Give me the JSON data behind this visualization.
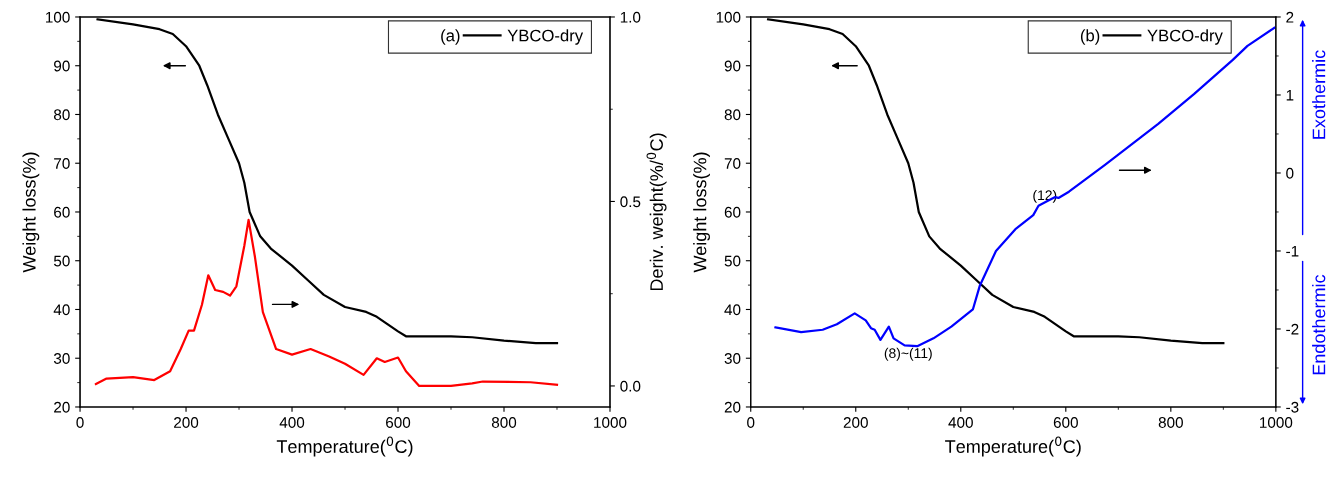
{
  "chart_data": [
    {
      "type": "line",
      "legend_title": "(a)",
      "xlabel": "Temperature($^{0}$C)",
      "ylabel": "Weight loss(%)",
      "y2label": "Deriv. weight(%/$^{0}$C)",
      "legend": "top right",
      "xlim": [
        0,
        1000
      ],
      "xticks": [
        0,
        200,
        400,
        600,
        800,
        1000
      ],
      "ylim": [
        20,
        100
      ],
      "yticks": [
        20,
        30,
        40,
        50,
        60,
        70,
        80,
        90,
        100
      ],
      "y2lim": [
        -0.057,
        1.0
      ],
      "y2ticks": [
        {
          "value": 0,
          "label": "0.0"
        },
        {
          "value": 0.5,
          "label": "0.5"
        },
        {
          "value": 1,
          "label": "1.0"
        }
      ],
      "series": [
        {
          "name": "YBCO-dry",
          "color": "#000000",
          "x": [
            33,
            100,
            150,
            175,
            200,
            225,
            240,
            260,
            280,
            300,
            310,
            320,
            340,
            360,
            400,
            430,
            460,
            500,
            540,
            560,
            580,
            600,
            615,
            700,
            740,
            800,
            860,
            900
          ],
          "values": [
            99.5,
            98.5,
            97.5,
            96.5,
            94,
            90,
            86,
            80,
            75,
            70,
            66,
            60,
            55,
            52.5,
            49,
            46,
            43,
            40.5,
            39.5,
            38.5,
            37,
            35.5,
            34.5,
            34.5,
            34.3,
            33.6,
            33.1,
            33.1
          ]
        },
        {
          "color": "#ff0000",
          "axis": "y2",
          "x": [
            30,
            50,
            100,
            140,
            170,
            190,
            205,
            215,
            230,
            242,
            255,
            270,
            283,
            295,
            310,
            318,
            330,
            345,
            370,
            400,
            435,
            470,
            500,
            535,
            560,
            575,
            600,
            615,
            640,
            700,
            740,
            760,
            850,
            900
          ],
          "values": [
            0.005,
            0.02,
            0.024,
            0.016,
            0.04,
            0.1,
            0.15,
            0.15,
            0.22,
            0.3,
            0.26,
            0.255,
            0.245,
            0.27,
            0.38,
            0.45,
            0.35,
            0.2,
            0.1,
            0.085,
            0.1,
            0.08,
            0.06,
            0.03,
            0.075,
            0.065,
            0.077,
            0.04,
            0.0,
            0.0,
            0.007,
            0.012,
            0.01,
            0.003
          ]
        }
      ]
    },
    {
      "type": "line",
      "legend_title": "(b)",
      "xlabel": "Temperature($^{0}$C)",
      "ylabel": "Weight loss(%)",
      "legend": "top right",
      "xlim": [
        0,
        1000
      ],
      "xticks": [
        0,
        200,
        400,
        600,
        800,
        1000
      ],
      "ylim": [
        20,
        100
      ],
      "yticks": [
        20,
        30,
        40,
        50,
        60,
        70,
        80,
        90,
        100
      ],
      "y2lim": [
        -3,
        2
      ],
      "y2ticks": [
        -3,
        -2,
        -1,
        0,
        1,
        2
      ],
      "annotations": [
        "(8)~(11)",
        "(12)",
        "Exothermic",
        "Endothermic"
      ],
      "series": [
        {
          "name": "YBCO-dry",
          "color": "#000000",
          "x": [
            33,
            100,
            150,
            175,
            200,
            225,
            240,
            260,
            280,
            300,
            310,
            320,
            340,
            360,
            400,
            430,
            460,
            500,
            540,
            560,
            580,
            600,
            615,
            700,
            740,
            800,
            860,
            900
          ],
          "values": [
            99.5,
            98.5,
            97.5,
            96.5,
            94,
            90,
            86,
            80,
            75,
            70,
            66,
            60,
            55,
            52.5,
            49,
            46,
            43,
            40.5,
            39.5,
            38.5,
            37,
            35.5,
            34.5,
            34.5,
            34.3,
            33.6,
            33.1,
            33.1
          ]
        },
        {
          "color": "#0000ff",
          "axis": "y2",
          "x": [
            47,
            96,
            137,
            164,
            198,
            219,
            229,
            236,
            247,
            263,
            272,
            293,
            317,
            348,
            382,
            423,
            436,
            467,
            504,
            538,
            548,
            565,
            579,
            586,
            606,
            674,
            776,
            844,
            918,
            946,
            997
          ],
          "values": [
            -1.98,
            -2.04,
            -2.01,
            -1.94,
            -1.8,
            -1.89,
            -1.99,
            -2.01,
            -2.14,
            -1.97,
            -2.12,
            -2.21,
            -2.22,
            -2.12,
            -1.97,
            -1.75,
            -1.45,
            -1.0,
            -0.72,
            -0.54,
            -0.42,
            -0.36,
            -0.31,
            -0.32,
            -0.24,
            0.1,
            0.63,
            1.01,
            1.45,
            1.63,
            1.86
          ]
        }
      ]
    }
  ]
}
